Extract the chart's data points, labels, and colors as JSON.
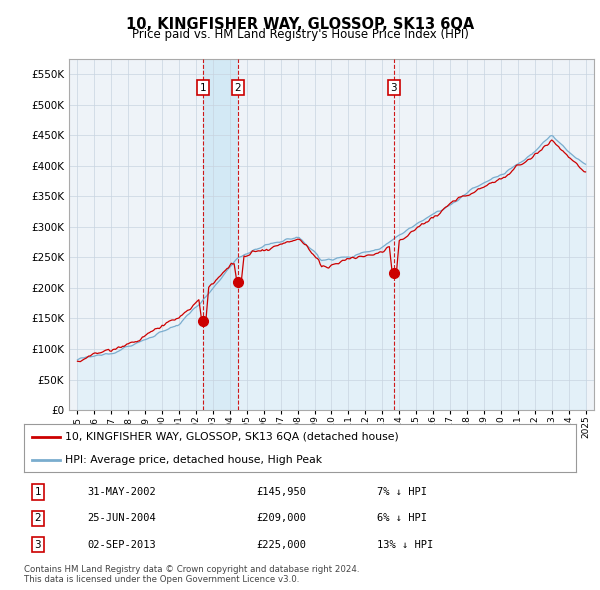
{
  "title": "10, KINGFISHER WAY, GLOSSOP, SK13 6QA",
  "subtitle": "Price paid vs. HM Land Registry's House Price Index (HPI)",
  "legend_line1": "10, KINGFISHER WAY, GLOSSOP, SK13 6QA (detached house)",
  "legend_line2": "HPI: Average price, detached house, High Peak",
  "sales": [
    {
      "label": "1",
      "date": "31-MAY-2002",
      "price": 145950,
      "pct": "7%",
      "dir": "↓",
      "x_year": 2002.42
    },
    {
      "label": "2",
      "date": "25-JUN-2004",
      "price": 209000,
      "pct": "6%",
      "dir": "↓",
      "x_year": 2004.48
    },
    {
      "label": "3",
      "date": "02-SEP-2013",
      "price": 225000,
      "pct": "13%",
      "dir": "↓",
      "x_year": 2013.67
    }
  ],
  "copyright": "Contains HM Land Registry data © Crown copyright and database right 2024.\nThis data is licensed under the Open Government Licence v3.0.",
  "ylim": [
    0,
    575000
  ],
  "yticks": [
    0,
    50000,
    100000,
    150000,
    200000,
    250000,
    300000,
    350000,
    400000,
    450000,
    500000,
    550000
  ],
  "xlim": [
    1994.5,
    2025.5
  ],
  "red_color": "#cc0000",
  "blue_color": "#7aadce",
  "blue_fill": "#ddeef8",
  "highlight_fill": "#d0e8f5",
  "background": "#eef3f8",
  "grid_color": "#c8d4e0",
  "sale_dot_color": "#cc0000",
  "sale_dot_size": 7
}
